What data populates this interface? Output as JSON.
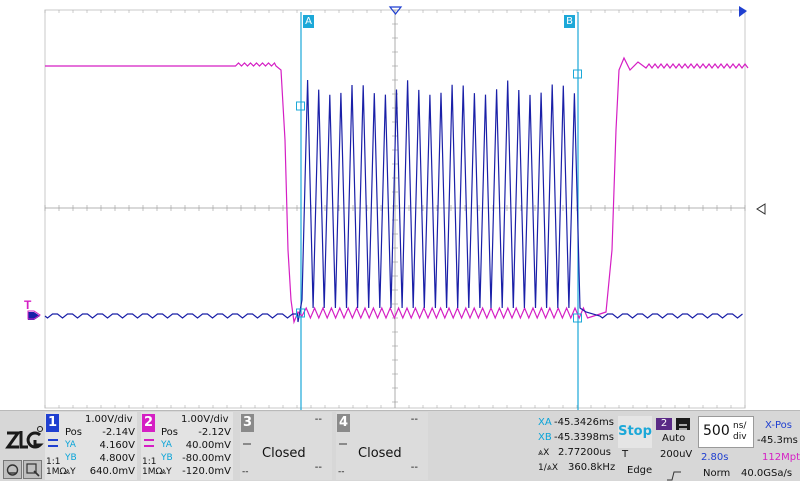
{
  "cursors": {
    "a_label": "A",
    "b_label": "B"
  },
  "trigger_marker": "T",
  "colors": {
    "ch1": "#1a20a8",
    "ch2": "#d51fc4",
    "cursor": "#1ca8d8",
    "grid": "#8c8c8c",
    "accent": "#1f3fd0"
  },
  "channels": [
    {
      "num": "1",
      "scale": "1.00V/div",
      "pos_label": "Pos",
      "pos": "-2.14V",
      "ya_label": "YA",
      "ya": "4.160V",
      "yb_label": "YB",
      "yb": "4.800V",
      "coupling_top": "1:1",
      "coupling_bot": "1MΩ",
      "dy_label": "⩓Y",
      "dy": "640.0mV"
    },
    {
      "num": "2",
      "scale": "1.00V/div",
      "pos_label": "Pos",
      "pos": "-2.12V",
      "ya_label": "YA",
      "ya": "40.00mV",
      "yb_label": "YB",
      "yb": "-80.00mV",
      "coupling_top": "1:1",
      "coupling_bot": "1MΩ",
      "dy_label": "⩓Y",
      "dy": "-120.0mV"
    }
  ],
  "closed_channels": [
    {
      "num": "3",
      "top": "--",
      "label": "Closed",
      "mid": "--",
      "bot": "--"
    },
    {
      "num": "4",
      "top": "--",
      "label": "Closed",
      "mid": "--",
      "bot": "--"
    }
  ],
  "cursor_readout": {
    "xa_label": "XA",
    "xa": "-45.3426ms",
    "xb_label": "XB",
    "xb": "-45.3398ms",
    "dx_label": "⩓X",
    "dx": "2.77200us",
    "inv_label": "1/⩓X",
    "inv": "360.8kHz"
  },
  "run_state": "Stop",
  "trigger": {
    "channel": "2",
    "mode": "Auto",
    "label": "T",
    "level": "200uV",
    "type": "Edge"
  },
  "timebase": {
    "value": "500",
    "unit_top": "ns/",
    "unit_bot": "div",
    "time": "2.80s",
    "memory": "112Mpts",
    "mode": "Norm",
    "rate": "40.0GSa/s"
  },
  "xpos": {
    "label": "X-Pos",
    "value": "-45.3ms"
  }
}
